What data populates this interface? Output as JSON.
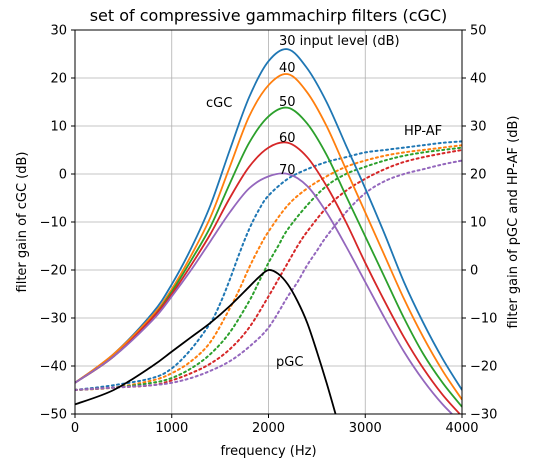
{
  "chart_data": {
    "type": "line",
    "title": "set of compressive gammachirp filters (cGC)",
    "xlabel": "frequency (Hz)",
    "ylabel_left": "filter gain of cGC (dB)",
    "ylabel_right": "filter gain of pGC and HP-AF (dB)",
    "xlim": [
      0,
      4000
    ],
    "ylim_left": [
      -50,
      30
    ],
    "ylim_right": [
      -30,
      50
    ],
    "x_ticks": [
      "0",
      "1000",
      "2000",
      "3000",
      "4000"
    ],
    "y_ticks_left": [
      "−50",
      "−40",
      "−30",
      "−20",
      "−10",
      "0",
      "10",
      "20",
      "30"
    ],
    "y_ticks_right": [
      "−30",
      "−20",
      "−10",
      "0",
      "10",
      "20",
      "30",
      "40",
      "50"
    ],
    "grid": true,
    "annotations": {
      "level_30": "30 input level (dB)",
      "level_40": "40",
      "level_50": "50",
      "level_60": "60",
      "level_70": "70",
      "cgc": "cGC",
      "hpaf": "HP-AF",
      "pgc": "pGC"
    },
    "colors": [
      "#1f77b4",
      "#ff7f0e",
      "#2ca02c",
      "#d62728",
      "#9467bd"
    ],
    "cgc_series": [
      {
        "input_level_db": 30,
        "x": [
          0,
          400,
          800,
          1000,
          1200,
          1400,
          1600,
          1800,
          2000,
          2200,
          2400,
          2600,
          2800,
          3000,
          3200,
          3400,
          3600,
          3800,
          4000
        ],
        "y": [
          -43.5,
          -37.5,
          -29,
          -23,
          -15.5,
          -6.5,
          5,
          16,
          23.5,
          26,
          22,
          15,
          6,
          -3,
          -12.5,
          -22.5,
          -31,
          -38.5,
          -45
        ]
      },
      {
        "input_level_db": 40,
        "x": [
          0,
          400,
          800,
          1000,
          1200,
          1400,
          1600,
          1800,
          2000,
          2200,
          2400,
          2600,
          2800,
          3000,
          3200,
          3400,
          3600,
          3800,
          4000
        ],
        "y": [
          -43.5,
          -37.5,
          -29.5,
          -24,
          -17,
          -9,
          1.5,
          12,
          18.5,
          20.8,
          17,
          10,
          1,
          -8,
          -17,
          -26,
          -34,
          -41,
          -47
        ]
      },
      {
        "input_level_db": 50,
        "x": [
          0,
          400,
          800,
          1000,
          1200,
          1400,
          1600,
          1800,
          2000,
          2200,
          2400,
          2600,
          2800,
          3000,
          3200,
          3400,
          3600,
          3800,
          4000
        ],
        "y": [
          -43.5,
          -38,
          -30,
          -24.5,
          -18,
          -11,
          -2,
          6.5,
          12,
          13.8,
          10.5,
          4,
          -4.5,
          -13,
          -21.5,
          -30,
          -37.5,
          -43.5,
          -48.5
        ]
      },
      {
        "input_level_db": 60,
        "x": [
          0,
          400,
          800,
          1000,
          1200,
          1400,
          1600,
          1800,
          2000,
          2200,
          2400,
          2600,
          2800,
          3000,
          3200,
          3400,
          3600,
          3800,
          4000
        ],
        "y": [
          -43.5,
          -38,
          -30,
          -25,
          -19,
          -12.5,
          -5,
          1.5,
          5.5,
          6.5,
          3.5,
          -2.5,
          -10,
          -18.5,
          -26.5,
          -34,
          -40.5,
          -46,
          -50.5
        ]
      },
      {
        "input_level_db": 70,
        "x": [
          0,
          400,
          800,
          1000,
          1200,
          1400,
          1600,
          1800,
          2000,
          2200,
          2400,
          2600,
          2800,
          3000,
          3200,
          3400,
          3600,
          3800,
          4000
        ],
        "y": [
          -43.5,
          -38,
          -30.5,
          -25.5,
          -20,
          -14,
          -8,
          -3,
          -0.5,
          0,
          -2.5,
          -8,
          -15,
          -22.5,
          -30,
          -37,
          -43,
          -48,
          -52
        ]
      }
    ],
    "hpaf_series": [
      {
        "input_level_db": 30,
        "x": [
          0,
          400,
          800,
          1000,
          1200,
          1400,
          1500,
          1600,
          1700,
          1800,
          1900,
          2000,
          2200,
          2400,
          2600,
          2800,
          3000,
          3200,
          3400,
          3600,
          3800,
          4000
        ],
        "y": [
          -45,
          -44,
          -42.5,
          -40.5,
          -36.5,
          -31,
          -27,
          -22,
          -16.5,
          -11.5,
          -7.5,
          -4.5,
          -1,
          1,
          2.5,
          3.5,
          4.5,
          5,
          5.5,
          6,
          6.5,
          6.8
        ]
      },
      {
        "input_level_db": 40,
        "x": [
          0,
          400,
          800,
          1000,
          1200,
          1400,
          1600,
          1700,
          1800,
          1900,
          2000,
          2200,
          2400,
          2600,
          2800,
          3000,
          3200,
          3400,
          3600,
          3800,
          4000
        ],
        "y": [
          -45,
          -44.5,
          -43,
          -41.5,
          -39,
          -35,
          -28,
          -24,
          -19.5,
          -15.5,
          -12,
          -6.5,
          -3,
          -0.5,
          1.5,
          2.8,
          3.8,
          4.5,
          5,
          5.5,
          6
        ]
      },
      {
        "input_level_db": 50,
        "x": [
          0,
          400,
          800,
          1000,
          1200,
          1400,
          1600,
          1800,
          1900,
          2000,
          2100,
          2200,
          2400,
          2600,
          2800,
          3000,
          3200,
          3400,
          3600,
          3800,
          4000
        ],
        "y": [
          -45,
          -44.5,
          -43.5,
          -42.5,
          -40.5,
          -37.5,
          -33,
          -26.5,
          -22.5,
          -18.5,
          -15,
          -11.5,
          -6.5,
          -2.5,
          0,
          1.5,
          2.8,
          3.8,
          4.5,
          5,
          5.5
        ]
      },
      {
        "input_level_db": 60,
        "x": [
          0,
          400,
          800,
          1000,
          1200,
          1400,
          1600,
          1800,
          2000,
          2100,
          2200,
          2300,
          2400,
          2600,
          2800,
          3000,
          3200,
          3400,
          3600,
          3800,
          4000
        ],
        "y": [
          -45,
          -44.5,
          -44,
          -43,
          -41.5,
          -39.5,
          -36.5,
          -32,
          -25.5,
          -22,
          -18.5,
          -15,
          -12,
          -7,
          -3.5,
          -1,
          1,
          2.5,
          3.5,
          4.3,
          5
        ]
      },
      {
        "input_level_db": 70,
        "x": [
          0,
          400,
          800,
          1000,
          1200,
          1400,
          1600,
          1800,
          2000,
          2200,
          2300,
          2400,
          2500,
          2600,
          2800,
          3000,
          3200,
          3400,
          3600,
          3800,
          4000
        ],
        "y": [
          -45,
          -44.5,
          -44,
          -43.5,
          -42.5,
          -41,
          -39,
          -36,
          -32,
          -25.5,
          -22.5,
          -19,
          -16,
          -13,
          -8,
          -4,
          -1.5,
          0,
          1,
          2,
          2.8
        ]
      }
    ],
    "pgc_series": {
      "color": "#000000",
      "x": [
        0,
        400,
        800,
        1000,
        1200,
        1400,
        1600,
        1800,
        1900,
        2000,
        2100,
        2200,
        2300,
        2400,
        2500,
        2600,
        2700
      ],
      "y": [
        -48,
        -45,
        -40,
        -37,
        -34,
        -31,
        -27.5,
        -23.5,
        -21.5,
        -20,
        -20.8,
        -23,
        -26.5,
        -31,
        -37,
        -43.5,
        -50.5
      ]
    }
  }
}
